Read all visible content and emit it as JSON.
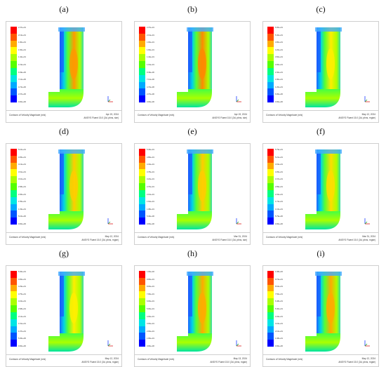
{
  "colormap": [
    "#0000ff",
    "#0055ff",
    "#00aaff",
    "#00e5e5",
    "#00ff80",
    "#55ff00",
    "#aaff00",
    "#ffff00",
    "#ffaa00",
    "#ff5500",
    "#ff0000"
  ],
  "panels": [
    {
      "id": "a",
      "label": "(a)",
      "footer_title": "Contours of Velocity Magnitude (m/s)",
      "footer_date": "Apr 19, 2024",
      "footer_version": "ANSYS Fluent 15.0 (3d, pbns, ske)",
      "ticks": [
        "2.37e+01",
        "2.13e+01",
        "1.90e+01",
        "1.66e+01",
        "1.42e+01",
        "1.19e+01",
        "9.49e+00",
        "7.12e+00",
        "4.74e+00",
        "2.37e+00",
        "0.00e+00"
      ],
      "core": "#ff9900"
    },
    {
      "id": "b",
      "label": "(b)",
      "footer_title": "Contours of Velocity Magnitude (m/s)",
      "footer_date": "Apr 19, 2024",
      "footer_version": "ANSYS Fluent 15.0 (3d, pbns, ske)",
      "ticks": [
        "2.37e+01",
        "2.13e+01",
        "1.90e+01",
        "1.66e+01",
        "1.42e+01",
        "1.19e+01",
        "9.49e+00",
        "7.12e+00",
        "4.74e+00",
        "2.37e+00",
        "0.00e+00"
      ],
      "core": "#ff8800"
    },
    {
      "id": "c",
      "label": "(c)",
      "footer_title": "Contours of Velocity Magnitude (m/s)",
      "footer_date": "May 12, 2024",
      "footer_version": "ANSYS Fluent 15.0 (3d, pbns, rngke)",
      "ticks": [
        "6.00e+01",
        "5.40e+01",
        "4.80e+01",
        "4.20e+01",
        "3.60e+01",
        "3.00e+01",
        "2.40e+01",
        "1.80e+01",
        "1.20e+01",
        "6.00e+00",
        "0.00e+00"
      ],
      "core": "#ffee00"
    },
    {
      "id": "d",
      "label": "(d)",
      "footer_title": "Contours of Velocity Magnitude (m/s)",
      "footer_date": "May 12, 2024",
      "footer_version": "ANSYS Fluent 15.0 (3d, pbns, rngke)",
      "ticks": [
        "5.16e+01",
        "4.65e+01",
        "4.13e+01",
        "3.61e+01",
        "3.10e+01",
        "2.58e+01",
        "2.06e+01",
        "1.55e+01",
        "1.03e+01",
        "5.16e+00",
        "0.00e+00"
      ],
      "core": "#ffcc00"
    },
    {
      "id": "e",
      "label": "(e)",
      "footer_title": "Contours of Velocity Magnitude (m/s)",
      "footer_date": "Mar 31, 2024",
      "footer_version": "ANSYS Fluent 15.0 (3d, pbns, ske)",
      "ticks": [
        "5.40e+01",
        "4.86e+01",
        "4.32e+01",
        "3.78e+01",
        "3.24e+01",
        "2.70e+01",
        "2.16e+01",
        "1.62e+01",
        "1.08e+01",
        "5.40e+00",
        "0.00e+00"
      ],
      "core": "#ffcc00"
    },
    {
      "id": "f",
      "label": "(f)",
      "footer_title": "Contours of Velocity Magnitude (m/s)",
      "footer_date": "Mar 31, 2024",
      "footer_version": "ANSYS Fluent 15.0 (3d, pbns, rngke)",
      "ticks": [
        "5.79e+01",
        "5.21e+01",
        "4.63e+01",
        "4.05e+01",
        "3.47e+01",
        "2.89e+01",
        "2.32e+01",
        "1.74e+01",
        "1.16e+01",
        "5.79e+00",
        "0.00e+00"
      ],
      "core": "#ffdd00"
    },
    {
      "id": "g",
      "label": "(g)",
      "footer_title": "Contours of Velocity Magnitude (m/s)",
      "footer_date": "May 12, 2024",
      "footer_version": "ANSYS Fluent 15.0 (3d, pbns, rngke)",
      "ticks": [
        "5.36e+01",
        "4.82e+01",
        "4.29e+01",
        "3.75e+01",
        "3.22e+01",
        "2.68e+01",
        "2.14e+01",
        "1.61e+01",
        "1.07e+01",
        "5.36e+00",
        "0.00e+00"
      ],
      "core": "#ffee00"
    },
    {
      "id": "h",
      "label": "(h)",
      "footer_title": "Contours of Velocity Magnitude (m/s)",
      "footer_date": "May 13, 2024",
      "footer_version": "ANSYS Fluent 15.0 (3d, pbns, rngke)",
      "ticks": [
        "1.00e+02",
        "9.00e+01",
        "8.00e+01",
        "7.00e+01",
        "6.00e+01",
        "5.00e+01",
        "4.00e+01",
        "3.00e+01",
        "2.00e+01",
        "1.00e+01",
        "0.00e+00"
      ],
      "core": "#ffaa00"
    },
    {
      "id": "i",
      "label": "(i)",
      "footer_title": "Contours of Velocity Magnitude (m/s)",
      "footer_date": "May 12, 2024",
      "footer_version": "ANSYS Fluent 15.0 (3d, pbns, rngke)",
      "ticks": [
        "1.08e+02",
        "9.72e+01",
        "8.64e+01",
        "7.56e+01",
        "6.48e+01",
        "5.40e+01",
        "4.32e+01",
        "3.24e+01",
        "2.16e+01",
        "1.08e+01",
        "0.00e+00"
      ],
      "core": "#ffaa00"
    }
  ]
}
